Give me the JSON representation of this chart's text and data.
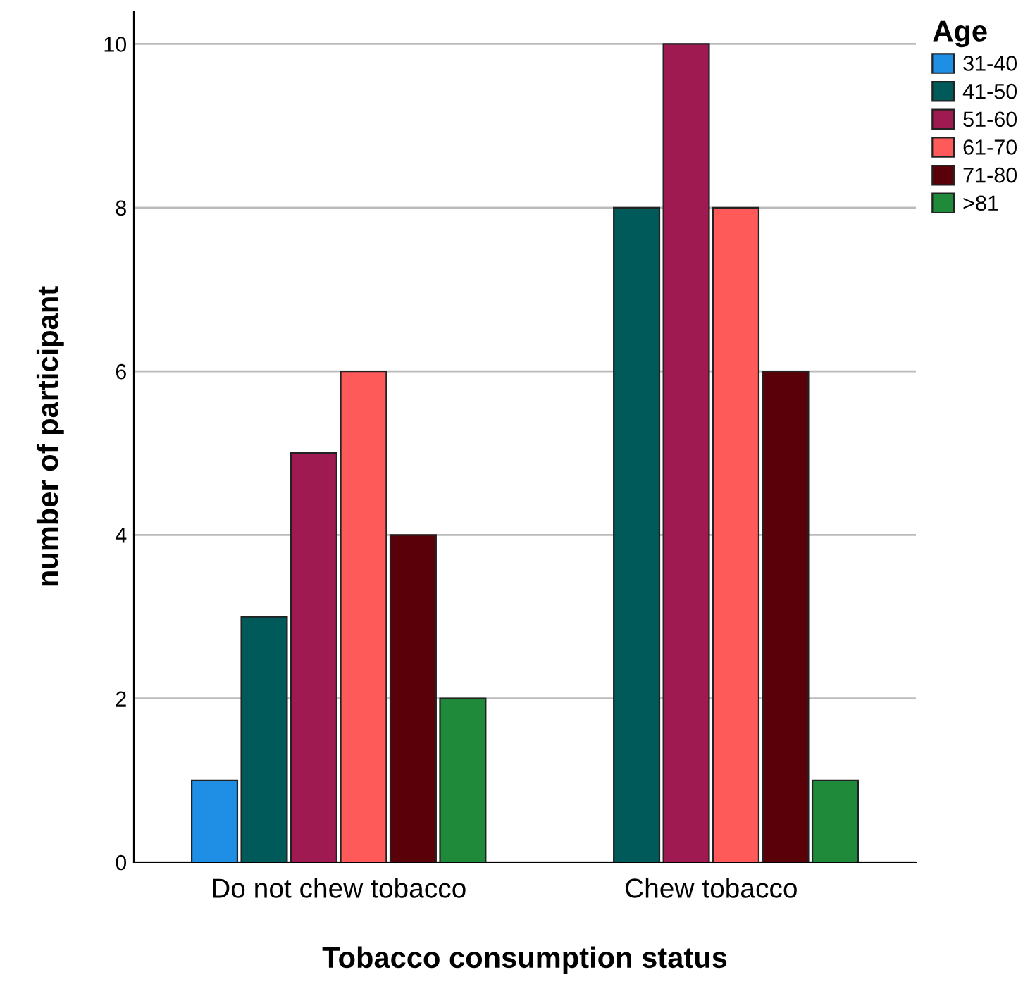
{
  "chart_data": {
    "type": "bar",
    "xlabel": "Tobacco consumption status",
    "ylabel": "number of participant",
    "legend_title": "Age",
    "categories": [
      "Do not chew tobacco",
      "Chew tobacco"
    ],
    "series": [
      {
        "name": "31-40",
        "color": "#1f8fe6",
        "values": [
          1,
          0
        ]
      },
      {
        "name": "41-50",
        "color": "#005a5a",
        "values": [
          3,
          8
        ]
      },
      {
        "name": "51-60",
        "color": "#9e1a50",
        "values": [
          5,
          10
        ]
      },
      {
        "name": "61-70",
        "color": "#ff5a5a",
        "values": [
          6,
          8
        ]
      },
      {
        "name": "71-80",
        "color": "#5a0008",
        "values": [
          4,
          6
        ]
      },
      {
        "name": ">81",
        "color": "#1f8a3a",
        "values": [
          2,
          1
        ]
      }
    ],
    "ylim": [
      0,
      10.4
    ],
    "yticks": [
      0,
      2,
      4,
      6,
      8,
      10
    ],
    "grid": "y",
    "legend": "top right"
  }
}
